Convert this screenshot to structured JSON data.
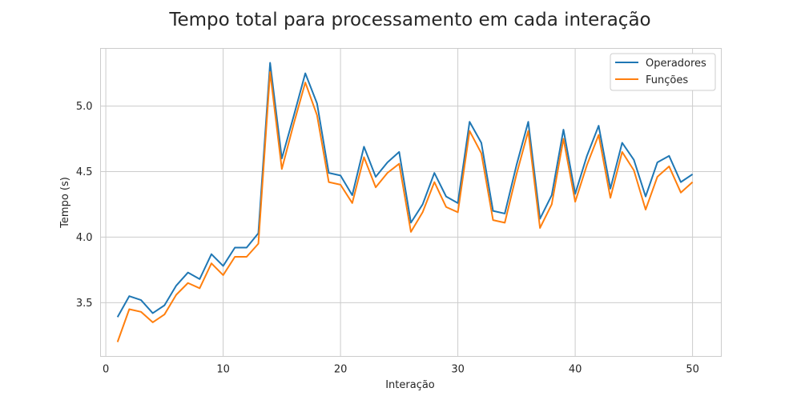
{
  "chart_data": {
    "type": "line",
    "title": "Tempo total para processamento em cada interação",
    "xlabel": "Interação",
    "ylabel": "Tempo (s)",
    "xlim": [
      -0.45,
      52.45
    ],
    "ylim": [
      3.09,
      5.44
    ],
    "xticks": [
      0,
      10,
      20,
      30,
      40,
      50
    ],
    "yticks": [
      3.5,
      4.0,
      4.5,
      5.0
    ],
    "xtick_labels": [
      "0",
      "10",
      "20",
      "30",
      "40",
      "50"
    ],
    "ytick_labels": [
      "3.5",
      "4.0",
      "4.5",
      "5.0"
    ],
    "grid": true,
    "legend_position": "top-right",
    "x": [
      1,
      2,
      3,
      4,
      5,
      6,
      7,
      8,
      9,
      10,
      11,
      12,
      13,
      14,
      15,
      16,
      17,
      18,
      19,
      20,
      21,
      22,
      23,
      24,
      25,
      26,
      27,
      28,
      29,
      30,
      31,
      32,
      33,
      34,
      35,
      36,
      37,
      38,
      39,
      40,
      41,
      42,
      43,
      44,
      45,
      46,
      47,
      48,
      49,
      50
    ],
    "series": [
      {
        "name": "Operadores",
        "color": "#1f77b4",
        "values": [
          3.39,
          3.55,
          3.52,
          3.42,
          3.48,
          3.63,
          3.73,
          3.68,
          3.87,
          3.78,
          3.92,
          3.92,
          4.03,
          5.33,
          4.6,
          4.92,
          5.25,
          5.02,
          4.49,
          4.47,
          4.32,
          4.69,
          4.46,
          4.57,
          4.65,
          4.11,
          4.25,
          4.49,
          4.31,
          4.26,
          4.88,
          4.72,
          4.2,
          4.18,
          4.55,
          4.88,
          4.14,
          4.32,
          4.82,
          4.33,
          4.62,
          4.85,
          4.37,
          4.72,
          4.59,
          4.31,
          4.57,
          4.62,
          4.42,
          4.48
        ]
      },
      {
        "name": "Funções",
        "color": "#ff7f0e",
        "values": [
          3.2,
          3.45,
          3.43,
          3.35,
          3.41,
          3.56,
          3.65,
          3.61,
          3.8,
          3.71,
          3.85,
          3.85,
          3.95,
          5.26,
          4.52,
          4.86,
          5.18,
          4.93,
          4.42,
          4.4,
          4.26,
          4.61,
          4.38,
          4.49,
          4.56,
          4.04,
          4.19,
          4.42,
          4.23,
          4.19,
          4.81,
          4.64,
          4.13,
          4.11,
          4.48,
          4.81,
          4.07,
          4.25,
          4.75,
          4.27,
          4.55,
          4.78,
          4.3,
          4.65,
          4.51,
          4.21,
          4.46,
          4.54,
          4.34,
          4.42
        ]
      }
    ]
  }
}
